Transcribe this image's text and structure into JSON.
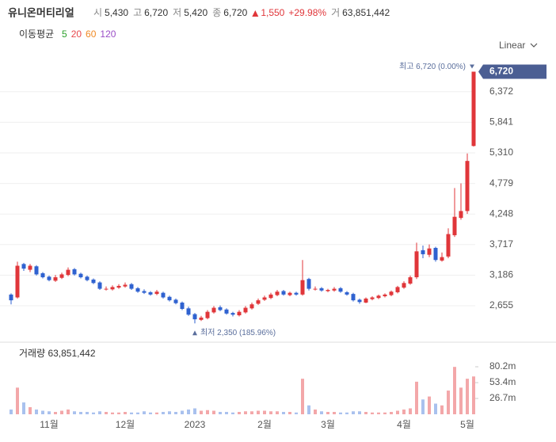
{
  "chart_data": {
    "type": "candlestick",
    "title": "유니온머티리얼",
    "header": [
      {
        "label": "시",
        "value": "5,430"
      },
      {
        "label": "고",
        "value": "6,720"
      },
      {
        "label": "저",
        "value": "5,420"
      },
      {
        "label": "종",
        "value": "6,720"
      }
    ],
    "change": "1,550",
    "change_pct": "+29.98%",
    "volume_label": "거",
    "volume_total": "63,851,442",
    "ma_label": "이동평균",
    "ma": [
      {
        "period": 5,
        "color": "#2ca02c"
      },
      {
        "period": 20,
        "color": "#e8474b"
      },
      {
        "period": 60,
        "color": "#f08a24"
      },
      {
        "period": 120,
        "color": "#9b4fc7"
      }
    ],
    "scale_label": "Linear",
    "up_color": "#e0363a",
    "down_color": "#2f62d0",
    "up_volume_color": "#f3a7a9",
    "down_volume_color": "#a9c1ee",
    "categories": [
      null,
      null,
      null,
      null,
      null,
      null,
      "11월",
      null,
      null,
      null,
      null,
      null,
      null,
      null,
      null,
      null,
      null,
      null,
      "12월",
      null,
      null,
      null,
      null,
      null,
      null,
      null,
      null,
      null,
      null,
      "2023",
      null,
      null,
      null,
      null,
      null,
      null,
      null,
      null,
      null,
      null,
      "2월",
      null,
      null,
      null,
      null,
      null,
      null,
      null,
      null,
      null,
      "3월",
      null,
      null,
      null,
      null,
      null,
      null,
      null,
      null,
      null,
      null,
      null,
      "4월",
      null,
      null,
      null,
      null,
      null,
      null,
      null,
      null,
      null,
      "5월",
      null
    ],
    "open": [
      2850,
      2800,
      3380,
      3280,
      3340,
      3220,
      3160,
      3090,
      3140,
      3190,
      3290,
      3210,
      3160,
      3110,
      3060,
      2940,
      2940,
      2970,
      2990,
      3030,
      2960,
      2910,
      2890,
      2860,
      2880,
      2810,
      2760,
      2710,
      2610,
      2510,
      2410,
      2440,
      2540,
      2630,
      2590,
      2530,
      2490,
      2540,
      2610,
      2690,
      2760,
      2790,
      2840,
      2910,
      2840,
      2880,
      2850,
      3120,
      2940,
      2960,
      2910,
      2920,
      2960,
      2890,
      2860,
      2760,
      2710,
      2770,
      2790,
      2820,
      2840,
      2890,
      2970,
      3040,
      3150,
      3620,
      3540,
      3660,
      3440,
      3510,
      3880,
      4180,
      4300,
      5430
    ],
    "high": [
      2870,
      3420,
      3400,
      3380,
      3360,
      3240,
      3180,
      3190,
      3230,
      3320,
      3310,
      3230,
      3180,
      3130,
      3080,
      2990,
      3010,
      3030,
      3060,
      3050,
      2980,
      2940,
      2910,
      2930,
      2900,
      2830,
      2780,
      2730,
      2640,
      2530,
      2480,
      2580,
      2650,
      2660,
      2610,
      2550,
      2580,
      2650,
      2710,
      2780,
      2830,
      2880,
      2930,
      2930,
      2900,
      2900,
      3450,
      3140,
      2990,
      2980,
      2950,
      2980,
      2980,
      2910,
      2880,
      2780,
      2800,
      2820,
      2850,
      2870,
      2920,
      3000,
      3080,
      3180,
      3750,
      3700,
      3720,
      3680,
      3580,
      4000,
      4700,
      4780,
      5300,
      6720
    ],
    "low": [
      2680,
      2780,
      3260,
      3240,
      3180,
      3130,
      3080,
      3070,
      3120,
      3170,
      3180,
      3130,
      3080,
      3030,
      2930,
      2920,
      2920,
      2950,
      2970,
      2930,
      2880,
      2860,
      2830,
      2840,
      2780,
      2730,
      2680,
      2580,
      2480,
      2350,
      2390,
      2420,
      2520,
      2560,
      2500,
      2470,
      2470,
      2520,
      2590,
      2670,
      2740,
      2770,
      2820,
      2830,
      2820,
      2830,
      2830,
      2920,
      2920,
      2900,
      2890,
      2900,
      2880,
      2830,
      2730,
      2690,
      2700,
      2750,
      2770,
      2800,
      2820,
      2870,
      2950,
      3020,
      3120,
      3480,
      3500,
      3420,
      3420,
      3480,
      3850,
      4150,
      4250,
      5420
    ],
    "close": [
      2750,
      3350,
      3300,
      3350,
      3200,
      3150,
      3100,
      3150,
      3200,
      3280,
      3200,
      3150,
      3100,
      3050,
      2950,
      2950,
      2980,
      3000,
      3020,
      2950,
      2900,
      2880,
      2850,
      2900,
      2800,
      2750,
      2700,
      2600,
      2500,
      2420,
      2450,
      2550,
      2620,
      2580,
      2520,
      2500,
      2550,
      2620,
      2680,
      2750,
      2800,
      2850,
      2900,
      2850,
      2880,
      2850,
      3100,
      2950,
      2950,
      2920,
      2930,
      2950,
      2900,
      2850,
      2750,
      2720,
      2780,
      2800,
      2830,
      2850,
      2900,
      2980,
      3050,
      3150,
      3600,
      3550,
      3650,
      3450,
      3500,
      3900,
      4200,
      4300,
      5170,
      6720
    ],
    "volume": [
      8000000,
      45000000,
      20000000,
      12000000,
      8000000,
      6000000,
      5000000,
      4000000,
      6000000,
      8000000,
      5000000,
      4000000,
      4000000,
      3000000,
      5000000,
      4000000,
      3000000,
      3000000,
      4000000,
      3000000,
      3000000,
      5000000,
      3000000,
      3000000,
      4000000,
      5000000,
      4000000,
      6000000,
      8000000,
      10000000,
      6000000,
      7000000,
      6000000,
      4000000,
      4000000,
      3000000,
      4000000,
      5000000,
      5000000,
      6000000,
      6000000,
      5000000,
      5000000,
      4000000,
      4000000,
      3000000,
      60000000,
      15000000,
      8000000,
      5000000,
      4000000,
      4000000,
      3000000,
      3000000,
      5000000,
      5000000,
      4000000,
      3000000,
      3000000,
      3000000,
      4000000,
      6000000,
      8000000,
      10000000,
      55000000,
      25000000,
      30000000,
      18000000,
      15000000,
      40000000,
      80000000,
      45000000,
      60000000,
      63851442
    ],
    "ylim": [
      2050,
      6933
    ],
    "yticks": [
      {
        "value": 2655,
        "label": "2,655"
      },
      {
        "value": 3186,
        "label": "3,186"
      },
      {
        "value": 3717,
        "label": "3,717"
      },
      {
        "value": 4248,
        "label": "4,248"
      },
      {
        "value": 4779,
        "label": "4,779"
      },
      {
        "value": 5310,
        "label": "5,310"
      },
      {
        "value": 5841,
        "label": "5,841"
      },
      {
        "value": 6372,
        "label": "6,372"
      }
    ],
    "price_tag": {
      "value": 6720,
      "label": "6,720"
    },
    "high_note": {
      "value": 6720,
      "label": "최고 6,720 (0.00%)"
    },
    "low_note": {
      "value": 2350,
      "label": "최저 2,350 (185.96%)"
    },
    "volume_title": "거래량 63,851,442",
    "vlim": [
      0,
      115000000
    ],
    "vticks": [
      {
        "value": 26700000,
        "label": "26.7m"
      },
      {
        "value": 53400000,
        "label": "53.4m"
      },
      {
        "value": 80200000,
        "label": "80.2m"
      }
    ],
    "grid": true
  }
}
